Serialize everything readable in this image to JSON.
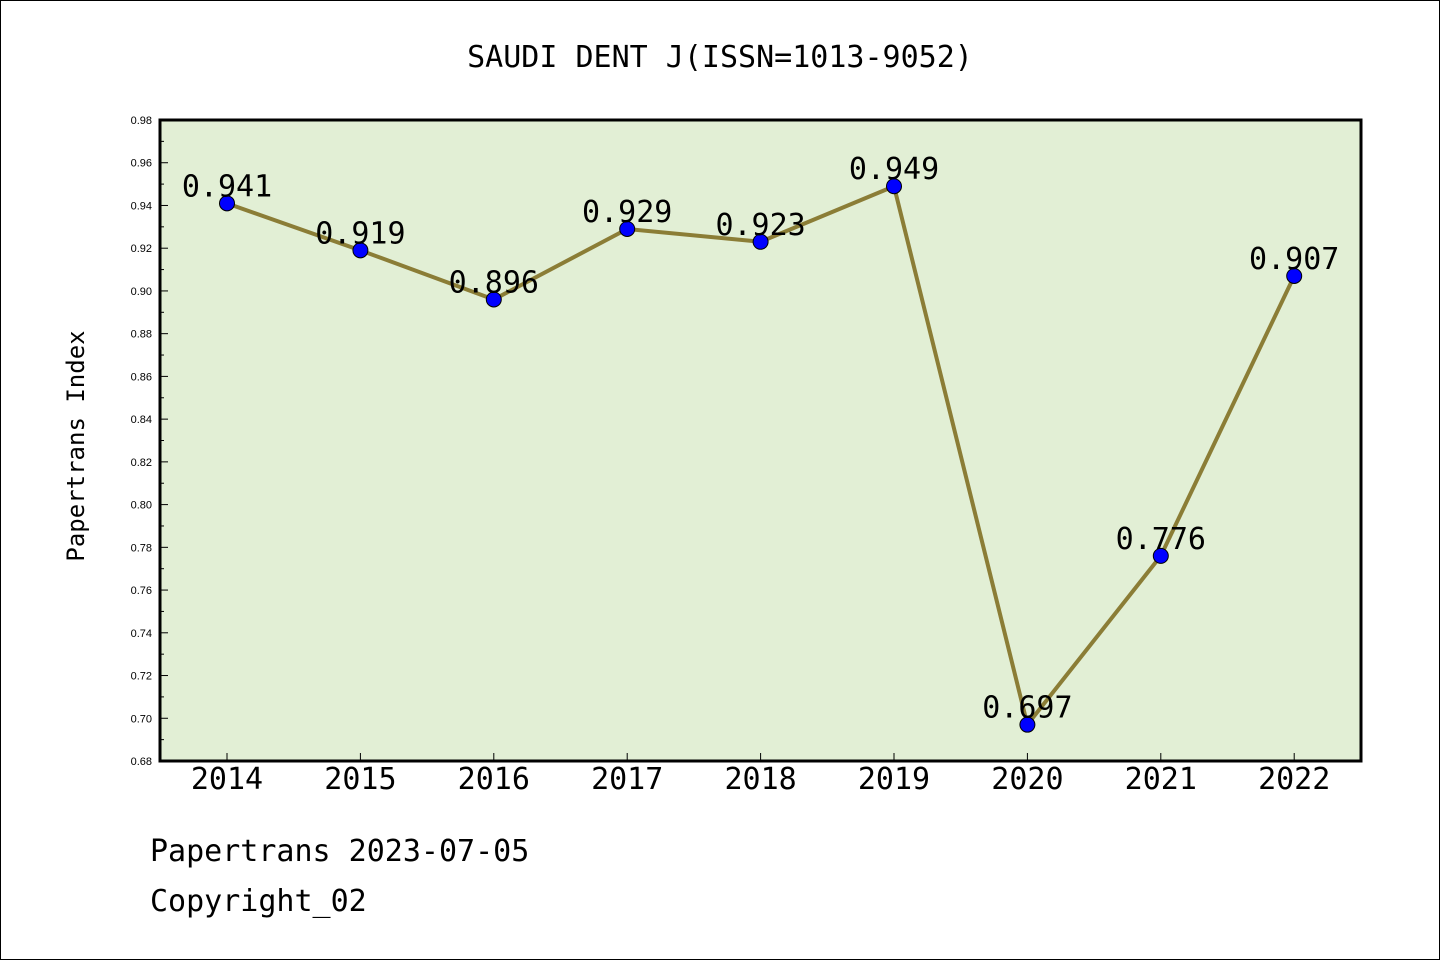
{
  "chart_data": {
    "type": "line",
    "title": "SAUDI DENT J(ISSN=1013-9052)",
    "xlabel": "",
    "ylabel": "Papertrans Index",
    "categories": [
      "2014",
      "2015",
      "2016",
      "2017",
      "2018",
      "2019",
      "2020",
      "2021",
      "2022"
    ],
    "values": [
      0.941,
      0.919,
      0.896,
      0.929,
      0.923,
      0.949,
      0.697,
      0.776,
      0.907
    ],
    "data_labels": [
      "0.941",
      "0.919",
      "0.896",
      "0.929",
      "0.923",
      "0.949",
      "0.697",
      "0.776",
      "0.907"
    ],
    "ylim": [
      0.68,
      0.98
    ],
    "yticks": [
      "0.68",
      "0.70",
      "0.72",
      "0.74",
      "0.76",
      "0.78",
      "0.80",
      "0.82",
      "0.84",
      "0.86",
      "0.88",
      "0.90",
      "0.92",
      "0.94",
      "0.96",
      "0.98"
    ],
    "grid": false,
    "colors": {
      "plot_background": "#e2efd5",
      "line": "#8b7d36",
      "marker": "#0000ff"
    }
  },
  "footer": {
    "line1": "Papertrans 2023-07-05",
    "line2": "Copyright_02"
  }
}
